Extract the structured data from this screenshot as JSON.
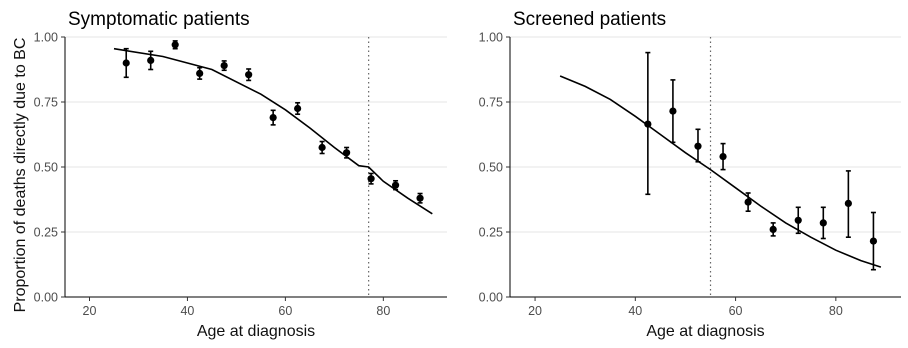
{
  "y_axis_title": "Proportion of deaths directly due to BC",
  "chart_data": [
    {
      "type": "scatter",
      "title": "Symptomatic patients",
      "xlabel": "Age at diagnosis",
      "ylabel": "Proportion of deaths directly due to BC",
      "xlim": [
        15,
        93
      ],
      "ylim": [
        0,
        1
      ],
      "x_ticks": [
        20,
        40,
        60,
        80
      ],
      "y_ticks": [
        0,
        0.25,
        0.5,
        0.75,
        1
      ],
      "x_tick_labels": [
        "20",
        "40",
        "60",
        "80"
      ],
      "y_tick_labels": [
        "0.00",
        "0.25",
        "0.50",
        "0.75",
        "1.00"
      ],
      "grid": true,
      "reference_line_x": 77,
      "points": [
        {
          "x": 27.5,
          "y": 0.9,
          "lo": 0.845,
          "hi": 0.955
        },
        {
          "x": 32.5,
          "y": 0.91,
          "lo": 0.875,
          "hi": 0.945
        },
        {
          "x": 37.5,
          "y": 0.97,
          "lo": 0.955,
          "hi": 0.985
        },
        {
          "x": 42.5,
          "y": 0.86,
          "lo": 0.838,
          "hi": 0.882
        },
        {
          "x": 47.5,
          "y": 0.89,
          "lo": 0.872,
          "hi": 0.908
        },
        {
          "x": 52.5,
          "y": 0.855,
          "lo": 0.833,
          "hi": 0.877
        },
        {
          "x": 57.5,
          "y": 0.69,
          "lo": 0.662,
          "hi": 0.718
        },
        {
          "x": 62.5,
          "y": 0.725,
          "lo": 0.703,
          "hi": 0.747
        },
        {
          "x": 67.5,
          "y": 0.575,
          "lo": 0.552,
          "hi": 0.598
        },
        {
          "x": 72.5,
          "y": 0.555,
          "lo": 0.535,
          "hi": 0.575
        },
        {
          "x": 77.5,
          "y": 0.455,
          "lo": 0.435,
          "hi": 0.475
        },
        {
          "x": 82.5,
          "y": 0.43,
          "lo": 0.413,
          "hi": 0.447
        },
        {
          "x": 87.5,
          "y": 0.38,
          "lo": 0.362,
          "hi": 0.398
        }
      ],
      "fitted_curve": {
        "x": [
          25,
          35,
          45,
          55,
          60,
          65,
          70,
          75,
          77,
          80,
          85,
          90
        ],
        "y": [
          0.955,
          0.925,
          0.875,
          0.78,
          0.72,
          0.65,
          0.575,
          0.505,
          0.5,
          0.445,
          0.38,
          0.32
        ]
      }
    },
    {
      "type": "scatter",
      "title": "Screened patients",
      "xlabel": "Age at diagnosis",
      "xlim": [
        15,
        93
      ],
      "ylim": [
        0,
        1
      ],
      "x_ticks": [
        20,
        40,
        60,
        80
      ],
      "y_ticks": [
        0,
        0.25,
        0.5,
        0.75,
        1
      ],
      "x_tick_labels": [
        "20",
        "40",
        "60",
        "80"
      ],
      "y_tick_labels": [
        "0.00",
        "0.25",
        "0.50",
        "0.75",
        "1.00"
      ],
      "grid": true,
      "reference_line_x": 55,
      "points": [
        {
          "x": 42.5,
          "y": 0.665,
          "lo": 0.395,
          "hi": 0.94
        },
        {
          "x": 47.5,
          "y": 0.715,
          "lo": 0.595,
          "hi": 0.835
        },
        {
          "x": 52.5,
          "y": 0.58,
          "lo": 0.52,
          "hi": 0.645
        },
        {
          "x": 57.5,
          "y": 0.54,
          "lo": 0.49,
          "hi": 0.59
        },
        {
          "x": 62.5,
          "y": 0.365,
          "lo": 0.33,
          "hi": 0.4
        },
        {
          "x": 67.5,
          "y": 0.26,
          "lo": 0.235,
          "hi": 0.285
        },
        {
          "x": 72.5,
          "y": 0.295,
          "lo": 0.245,
          "hi": 0.345
        },
        {
          "x": 77.5,
          "y": 0.285,
          "lo": 0.225,
          "hi": 0.345
        },
        {
          "x": 82.5,
          "y": 0.36,
          "lo": 0.23,
          "hi": 0.485
        },
        {
          "x": 87.5,
          "y": 0.215,
          "lo": 0.105,
          "hi": 0.325
        }
      ],
      "fitted_curve": {
        "x": [
          25,
          30,
          35,
          40,
          45,
          50,
          55,
          60,
          65,
          70,
          75,
          80,
          85,
          89
        ],
        "y": [
          0.85,
          0.81,
          0.76,
          0.695,
          0.625,
          0.555,
          0.49,
          0.42,
          0.35,
          0.285,
          0.23,
          0.18,
          0.14,
          0.115
        ]
      }
    }
  ]
}
